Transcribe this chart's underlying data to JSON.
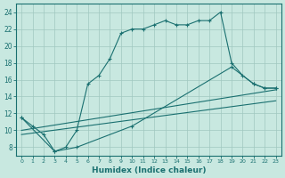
{
  "xlabel": "Humidex (Indice chaleur)",
  "ylabel": "",
  "xlim": [
    -0.5,
    23.5
  ],
  "ylim": [
    7,
    25
  ],
  "xticks": [
    0,
    1,
    2,
    3,
    4,
    5,
    6,
    7,
    8,
    9,
    10,
    11,
    12,
    13,
    14,
    15,
    16,
    17,
    18,
    19,
    20,
    21,
    22,
    23
  ],
  "yticks": [
    8,
    10,
    12,
    14,
    16,
    18,
    20,
    22,
    24
  ],
  "bg_color": "#c8e8e0",
  "grid_color": "#a0c8c0",
  "line_color": "#1a7070",
  "line1_x": [
    0,
    1,
    2,
    3,
    4,
    5,
    6,
    7,
    8,
    9,
    10,
    11,
    12,
    13,
    14,
    15,
    16,
    17,
    18,
    19,
    20,
    21,
    22,
    23
  ],
  "line1_y": [
    11.5,
    10.5,
    9.5,
    7.5,
    8.0,
    10.0,
    15.5,
    16.5,
    18.5,
    21.5,
    22.0,
    22.0,
    22.5,
    23.0,
    22.5,
    22.5,
    23.0,
    23.0,
    24.0,
    18.0,
    16.5,
    15.5,
    15.0,
    15.0
  ],
  "line2_x": [
    0,
    3,
    5,
    10,
    19,
    21,
    22,
    23
  ],
  "line2_y": [
    11.5,
    7.5,
    8.0,
    10.5,
    17.5,
    15.5,
    15.0,
    15.0
  ],
  "line3_x": [
    0,
    23
  ],
  "line3_y": [
    10.0,
    14.8
  ],
  "line4_x": [
    0,
    23
  ],
  "line4_y": [
    9.5,
    13.5
  ]
}
